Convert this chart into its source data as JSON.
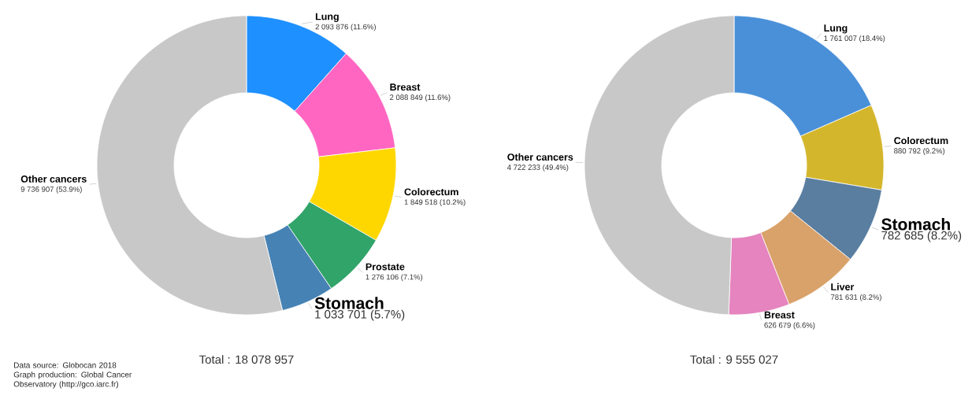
{
  "chart_data": [
    {
      "type": "donut",
      "categories": [
        "Lung",
        "Breast",
        "Colorectum",
        "Prostate",
        "Stomach",
        "Other cancers"
      ],
      "values": [
        2093876,
        2088849,
        1849518,
        1276106,
        1033701,
        9736907
      ],
      "colors": [
        "#1e90ff",
        "#ff66c2",
        "#ffd700",
        "#31a46a",
        "#4682b4",
        "#c8c8c8"
      ],
      "value_labels": [
        "2 093 876 (11.6%)",
        "2 088 849 (11.6%)",
        "1 849 518 (10.2%)",
        "1 276 106 (7.1%)",
        "1 033 701 (5.7%)",
        "9 736 907 (53.9%)"
      ],
      "annotations": [
        "Total : 18 078 957",
        "Data source: Globocan 2018",
        "Graph production: Global Cancer Observatory (http://gco.iarc.fr)"
      ]
    },
    {
      "type": "donut",
      "categories": [
        "Lung",
        "Colorectum",
        "Stomach",
        "Liver",
        "Breast",
        "Other cancers"
      ],
      "values": [
        1761007,
        880792,
        782685,
        781631,
        626679,
        4722233
      ],
      "colors": [
        "#4a90d9",
        "#d4b62c",
        "#5a7ea0",
        "#d9a26a",
        "#e584be",
        "#c8c8c8"
      ],
      "value_labels": [
        "1 761 007 (18.4%)",
        "880 792 (9.2%)",
        "782 685 (8.2%)",
        "781 631 (8.2%)",
        "626 679 (6.6%)",
        "4 722 233 (49.4%)"
      ],
      "annotations": [
        "Total : 9 555 027"
      ]
    }
  ]
}
